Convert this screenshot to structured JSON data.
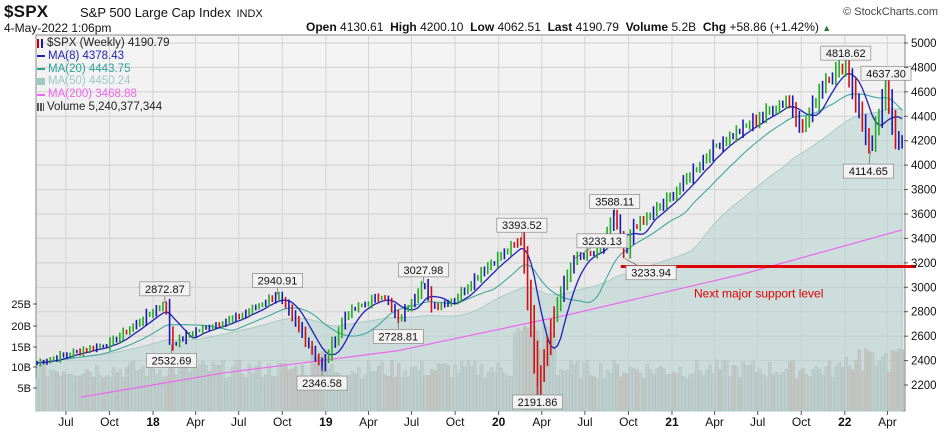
{
  "header": {
    "symbol": "$SPX",
    "name": "S&P 500 Large Cap Index",
    "exchange": "INDX",
    "date": "4-May-2022 1:06pm",
    "brand": "© StockCharts.com",
    "open_label": "Open",
    "open": "4130.61",
    "high_label": "High",
    "high": "4200.10",
    "low_label": "Low",
    "low": "4062.51",
    "last_label": "Last",
    "last": "4190.79",
    "volume_label": "Volume",
    "volume": "5.2B",
    "chg_label": "Chg",
    "chg": "+58.86 (+1.42%)"
  },
  "legend": [
    {
      "label": "$SPX (Weekly) 4190.79",
      "color": "#cc0000",
      "kind": "price-icon"
    },
    {
      "label": "MA(8) 4378.43",
      "color": "#1f1fb4",
      "kind": "line"
    },
    {
      "label": "MA(20) 4443.75",
      "color": "#2aa198",
      "kind": "line"
    },
    {
      "label": "MA(50) 4450.24",
      "color": "#9ec9c3",
      "kind": "area"
    },
    {
      "label": "MA(200) 3468.88",
      "color": "#ee66ee",
      "kind": "line"
    },
    {
      "label": "Volume 5,240,377,344",
      "color": "#666666",
      "kind": "volume-icon"
    }
  ],
  "chart_data": {
    "type": "line",
    "x_tick_labels": [
      "Jul",
      "Oct",
      "18",
      "Apr",
      "Jul",
      "Oct",
      "19",
      "Apr",
      "Jul",
      "Oct",
      "20",
      "Apr",
      "Jul",
      "Oct",
      "21",
      "Apr",
      "Jul",
      "Oct",
      "22",
      "Apr"
    ],
    "y_ticks": [
      2200,
      2400,
      2600,
      2800,
      3000,
      3200,
      3400,
      3600,
      3800,
      4000,
      4200,
      4400,
      4600,
      4800,
      5000
    ],
    "ylim": [
      2100,
      5050
    ],
    "volume_ticks": [
      "5B",
      "10B",
      "15B",
      "20B",
      "25B"
    ],
    "series": [
      {
        "name": "$SPX (Weekly)",
        "x": [
          "2017-05-01",
          "2017-07-03",
          "2017-10-02",
          "2018-01-26",
          "2018-02-09",
          "2018-04-02",
          "2018-07-02",
          "2018-09-21",
          "2018-11-02",
          "2018-12-24",
          "2019-02-15",
          "2019-05-03",
          "2019-06-03",
          "2019-07-26",
          "2019-08-15",
          "2019-10-01",
          "2019-12-01",
          "2020-02-19",
          "2020-03-23",
          "2020-05-01",
          "2020-06-08",
          "2020-08-01",
          "2020-09-02",
          "2020-09-24",
          "2020-10-12",
          "2020-11-01",
          "2021-01-01",
          "2021-04-01",
          "2021-07-01",
          "2021-09-02",
          "2021-10-04",
          "2021-11-20",
          "2022-01-03",
          "2022-02-24",
          "2022-03-29",
          "2022-04-20",
          "2022-05-04"
        ],
        "values": [
          2380,
          2450,
          2540,
          2872.87,
          2532.69,
          2640,
          2760,
          2940.91,
          2690,
          2346.58,
          2790,
          2940,
          2728.81,
          3027.98,
          2840,
          2900,
          3150,
          3393.52,
          2191.86,
          2840,
          3233.13,
          3290,
          3588.11,
          3233.94,
          3500,
          3540,
          3750,
          4150,
          4380,
          4540,
          4300,
          4700,
          4818.62,
          4114.65,
          4637.3,
          4200,
          4190.79
        ]
      },
      {
        "name": "MA(200)",
        "x": [
          "2017-08-01",
          "2018-06-01",
          "2019-06-01",
          "2020-06-01",
          "2021-06-01",
          "2022-05-01"
        ],
        "values": [
          2100,
          2300,
          2480,
          2780,
          3110,
          3468.88
        ]
      }
    ],
    "annotations": [
      {
        "label": "2872.87",
        "x": "2018-01-26",
        "y": 2872.87
      },
      {
        "label": "2532.69",
        "x": "2018-02-09",
        "y": 2532.69
      },
      {
        "label": "2940.91",
        "x": "2018-09-21",
        "y": 2940.91
      },
      {
        "label": "2346.58",
        "x": "2018-12-24",
        "y": 2346.58
      },
      {
        "label": "2728.81",
        "x": "2019-06-03",
        "y": 2728.81
      },
      {
        "label": "3027.98",
        "x": "2019-07-26",
        "y": 3027.98
      },
      {
        "label": "3393.52",
        "x": "2020-02-19",
        "y": 3393.52
      },
      {
        "label": "2191.86",
        "x": "2020-03-23",
        "y": 2191.86
      },
      {
        "label": "3233.13",
        "x": "2020-06-08",
        "y": 3233.13
      },
      {
        "label": "3588.11",
        "x": "2020-09-02",
        "y": 3588.11
      },
      {
        "label": "3233.94",
        "x": "2020-09-24",
        "y": 3233.94
      },
      {
        "label": "4818.62",
        "x": "2022-01-03",
        "y": 4818.62
      },
      {
        "label": "4637.30",
        "x": "2022-03-29",
        "y": 4637.3
      },
      {
        "label": "4114.65",
        "x": "2022-02-24",
        "y": 4114.65
      }
    ],
    "support_level": {
      "label": "Next major support level",
      "value": 3170,
      "color": "#e00000"
    },
    "grid": true,
    "legend_position": "top-left"
  }
}
